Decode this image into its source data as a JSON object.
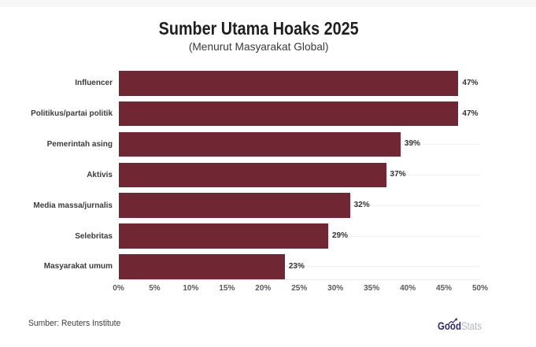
{
  "chart_data": {
    "type": "bar",
    "orientation": "horizontal",
    "title": "Sumber Utama Hoaks 2025",
    "subtitle": "(Menurut Masyarakat Global)",
    "categories": [
      "Influencer",
      "Politikus/partai politik",
      "Pemerintah asing",
      "Aktivis",
      "Media massa/jurnalis",
      "Selebritas",
      "Masyarakat umum"
    ],
    "values": [
      47,
      47,
      39,
      37,
      32,
      29,
      23
    ],
    "value_labels": [
      "47%",
      "47%",
      "39%",
      "37%",
      "32%",
      "29%",
      "23%"
    ],
    "xlim": [
      0,
      50
    ],
    "xtick_labels": [
      "0%",
      "5%",
      "10%",
      "15%",
      "20%",
      "25%",
      "30%",
      "35%",
      "40%",
      "45%",
      "50%"
    ],
    "bar_color": "#712633",
    "grid": "horizontal row lines, light gray",
    "legend": "none"
  },
  "footer": {
    "source": "Sumber: Reuters Institute",
    "logo": {
      "part1": "Good",
      "part2": "Stats",
      "color1": "#2a2870",
      "color2": "#b4b7c3"
    }
  }
}
